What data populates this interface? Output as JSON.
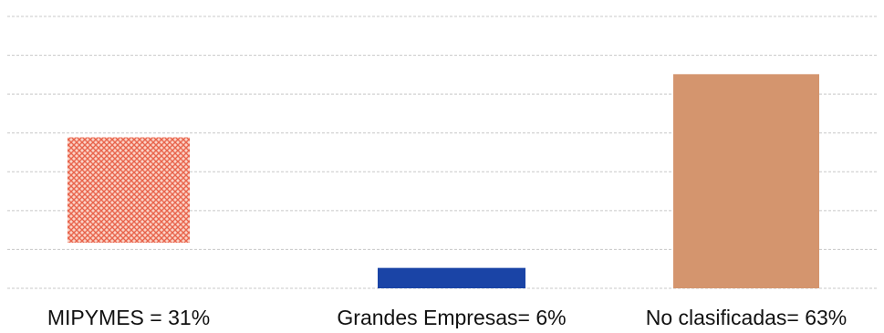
{
  "chart_data": {
    "type": "bar",
    "categories": [
      "MIPYMES = 31%",
      "Grandes Empresas= 6%",
      "No clasificadas= 63%"
    ],
    "values": [
      31,
      6,
      63
    ],
    "title": "",
    "xlabel": "",
    "ylabel": "",
    "ylim": [
      0,
      80
    ],
    "grid": true,
    "legend": "none",
    "colors": [
      "#f07a62",
      "#1a44a6",
      "#d4956e"
    ],
    "patterns": [
      "crosshatch",
      "solid",
      "solid"
    ]
  }
}
